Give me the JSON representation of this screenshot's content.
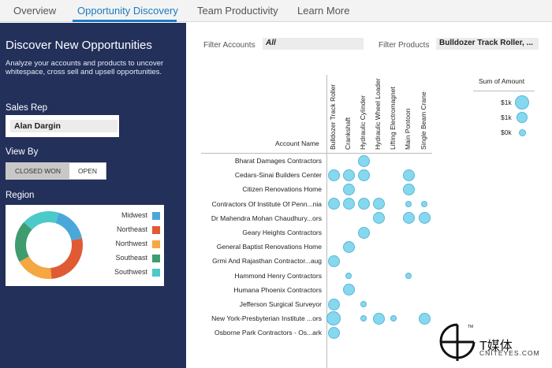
{
  "tabs": [
    {
      "label": "Overview",
      "active": false
    },
    {
      "label": "Opportunity Discovery",
      "active": true
    },
    {
      "label": "Team Productivity",
      "active": false
    },
    {
      "label": "Learn More",
      "active": false
    }
  ],
  "sidebar": {
    "title": "Discover New Opportunities",
    "description": "Analyze your accounts and products to uncover whitespace, cross sell and upsell opportunities.",
    "sales_rep_label": "Sales Rep",
    "sales_rep_value": "Alan Dargin",
    "view_by_label": "View By",
    "view_by_options": [
      "CLOSED WON",
      "OPEN"
    ],
    "view_by_selected": "CLOSED WON",
    "region_label": "Region",
    "regions": [
      {
        "name": "Midwest",
        "color": "#4aa8d8",
        "share": 0.17
      },
      {
        "name": "Northeast",
        "color": "#e05a34",
        "share": 0.27
      },
      {
        "name": "Northwest",
        "color": "#f5a742",
        "share": 0.18
      },
      {
        "name": "Southeast",
        "color": "#3f9c6e",
        "share": 0.2
      },
      {
        "name": "Southwest",
        "color": "#4cc9c9",
        "share": 0.18
      }
    ]
  },
  "filters": {
    "accounts_label": "Filter Accounts",
    "accounts_value": "All",
    "products_label": "Filter Products",
    "products_value": "Bulldozer Track Roller, ..."
  },
  "matrix": {
    "account_header": "Account Name",
    "products": [
      "Bulldozer Track Roller",
      "Crankshaft",
      "Hydraulic Cylinder",
      "Hydraulic Wheel Loader",
      "Lifting Electromagnet",
      "Main Pontoon",
      "Single Beam Crane"
    ],
    "accounts": [
      "Bharat Damages Contractors",
      "Cedars-Sinai Builders Center",
      "Citizen Renovations Home",
      "Contractors Of Institute Of Penn...nia",
      "Dr Mahendra Mohan Chaudhury...ors",
      "Geary Heights Contractors",
      "General Baptist Renovations Home",
      "Grmi And Rajasthan Contractor...aug",
      "Hammond Henry Contractors",
      "Humana Phoenix Contractors",
      "Jefferson Surgical Surveyor",
      "New York-Presbyterian Institute ...ors",
      "Osborne Park Contractors - Os...ark"
    ],
    "bubbles": [
      [
        0,
        0,
        2,
        0,
        0,
        0,
        0
      ],
      [
        2,
        2,
        2,
        0,
        0,
        2,
        0
      ],
      [
        0,
        2,
        0,
        0,
        0,
        2,
        0
      ],
      [
        2,
        2,
        2,
        2,
        0,
        1,
        1
      ],
      [
        0,
        0,
        0,
        2,
        0,
        2,
        2
      ],
      [
        0,
        0,
        2,
        0,
        0,
        0,
        0
      ],
      [
        0,
        2,
        0,
        0,
        0,
        0,
        0
      ],
      [
        2,
        0,
        0,
        0,
        0,
        0,
        0
      ],
      [
        0,
        1,
        0,
        0,
        0,
        1,
        0
      ],
      [
        0,
        2,
        0,
        0,
        0,
        0,
        0
      ],
      [
        2,
        0,
        1,
        0,
        0,
        0,
        0
      ],
      [
        3,
        0,
        1,
        2,
        1,
        0,
        2
      ],
      [
        2,
        0,
        0,
        0,
        0,
        0,
        0
      ]
    ]
  },
  "size_legend": {
    "title": "Sum of Amount",
    "items": [
      {
        "label": "$1k",
        "size": 3
      },
      {
        "label": "$1k",
        "size": 2
      },
      {
        "label": "$0k",
        "size": 1
      }
    ]
  },
  "watermark": {
    "text": "T媒体",
    "sub": "CNITEYES.COM",
    "tm": "TM"
  },
  "colors": {
    "accent": "#1a7bbf",
    "sidebar_bg": "#22305a",
    "bubble_fill": "#86d8ef",
    "bubble_stroke": "#5bb6d9"
  }
}
